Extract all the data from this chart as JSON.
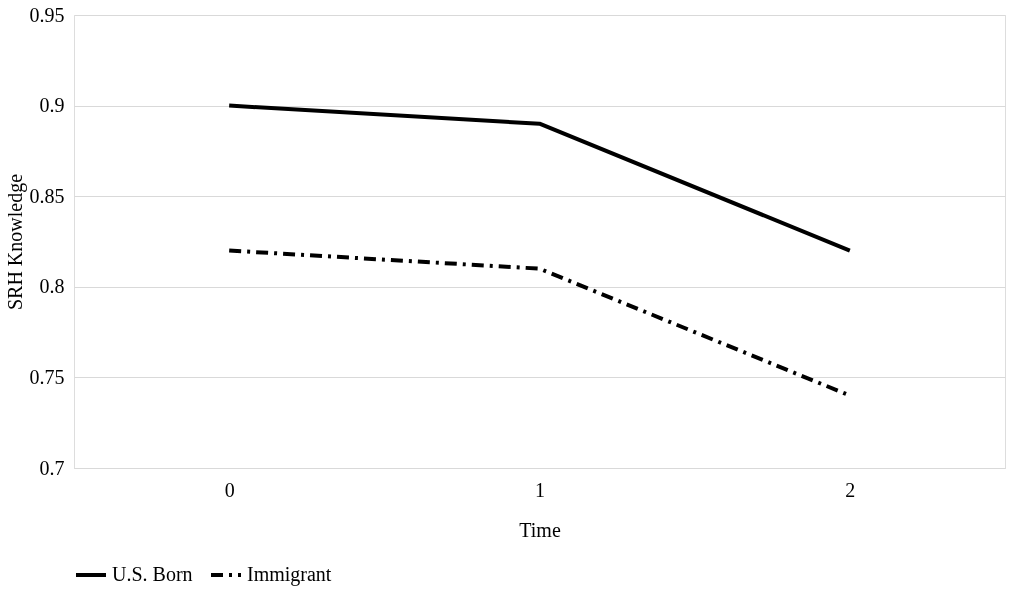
{
  "chart_data": {
    "type": "line",
    "xlabel": "Time",
    "ylabel": "SRH Knowledge",
    "categories": [
      "0",
      "1",
      "2"
    ],
    "series": [
      {
        "name": "U.S. Born",
        "color": "#000000",
        "line_style": "solid",
        "values": [
          0.9,
          0.89,
          0.82
        ]
      },
      {
        "name": "Immigrant",
        "color": "#000000",
        "line_style": "dashed",
        "values": [
          0.82,
          0.81,
          0.74
        ]
      }
    ],
    "ylim": [
      0.7,
      0.95
    ],
    "yticks": [
      0.7,
      0.75,
      0.8,
      0.85,
      0.9,
      0.95
    ],
    "grid": "y",
    "legend": "bottom",
    "marker": "none"
  }
}
